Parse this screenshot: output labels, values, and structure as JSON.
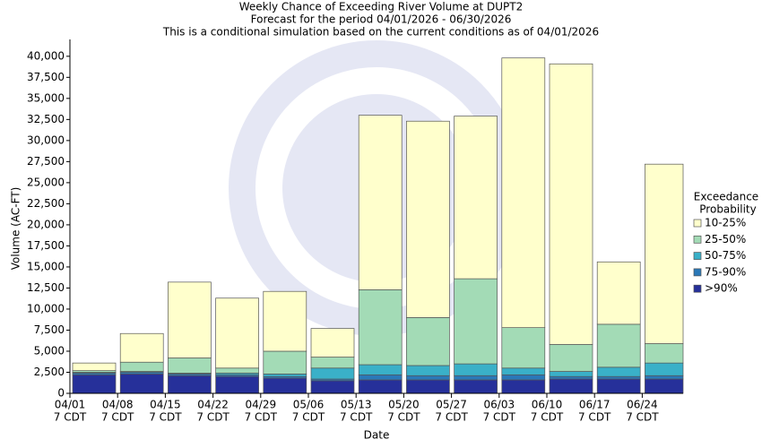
{
  "chart_data": {
    "type": "bar",
    "stacked": true,
    "title": "Weekly Chance of Exceeding River Volume at DUPT2",
    "subtitle": "Forecast for the period 04/01/2026 - 06/30/2026",
    "subtitle2": "This is a conditional simulation based on the current conditions as of 04/01/2026",
    "x_label": "Date",
    "y_label": "Volume (AC-FT)",
    "legend_title": [
      "Exceedance",
      "Probability"
    ],
    "categories": [
      [
        "04/01",
        "7 CDT"
      ],
      [
        "04/08",
        "7 CDT"
      ],
      [
        "04/15",
        "7 CDT"
      ],
      [
        "04/22",
        "7 CDT"
      ],
      [
        "04/29",
        "7 CDT"
      ],
      [
        "05/06",
        "7 CDT"
      ],
      [
        "05/13",
        "7 CDT"
      ],
      [
        "05/20",
        "7 CDT"
      ],
      [
        "05/27",
        "7 CDT"
      ],
      [
        "06/03",
        "7 CDT"
      ],
      [
        "06/10",
        "7 CDT"
      ],
      [
        "06/17",
        "7 CDT"
      ],
      [
        "06/24",
        "7 CDT"
      ]
    ],
    "series": [
      {
        "name": ">90%",
        "color": "#26309a",
        "values": [
          2200,
          2300,
          2100,
          2000,
          1800,
          1500,
          1600,
          1600,
          1600,
          1600,
          1700,
          1700,
          1700
        ]
      },
      {
        "name": "75-90%",
        "color": "#2a78b8",
        "values": [
          200,
          200,
          200,
          200,
          200,
          200,
          600,
          500,
          500,
          600,
          300,
          300,
          400
        ]
      },
      {
        "name": "50-75%",
        "color": "#3ab0c8",
        "values": [
          100,
          100,
          100,
          200,
          300,
          1300,
          1200,
          1200,
          1400,
          800,
          600,
          1100,
          1500
        ]
      },
      {
        "name": "25-50%",
        "color": "#a3dbb6",
        "values": [
          200,
          1100,
          1800,
          600,
          2700,
          1300,
          8900,
          5700,
          10100,
          4800,
          3200,
          5100,
          2300
        ]
      },
      {
        "name": "10-25%",
        "color": "#ffffcc",
        "values": [
          900,
          3400,
          9000,
          8300,
          7100,
          3400,
          20700,
          23300,
          19300,
          32000,
          33300,
          7400,
          21300
        ]
      }
    ],
    "ylim": [
      0,
      42000
    ],
    "yticks": [
      0,
      {
        "value": 2500,
        "label": "2,500"
      },
      {
        "value": 5000,
        "label": "5,000"
      },
      {
        "value": 7500,
        "label": "7,500"
      },
      {
        "value": 10000,
        "label": "10,000"
      },
      {
        "value": 12500,
        "label": "12,500"
      },
      {
        "value": 15000,
        "label": "15,000"
      },
      {
        "value": 17500,
        "label": "17,500"
      },
      {
        "value": 20000,
        "label": "20,000"
      },
      {
        "value": 22500,
        "label": "22,500"
      },
      {
        "value": 25000,
        "label": "25,000"
      },
      {
        "value": 27500,
        "label": "27,500"
      },
      {
        "value": 30000,
        "label": "30,000"
      },
      {
        "value": 32500,
        "label": "32,500"
      },
      {
        "value": 35000,
        "label": "35,000"
      },
      {
        "value": 37500,
        "label": "37,500"
      },
      {
        "value": 40000,
        "label": "40,000"
      }
    ],
    "grid": false
  }
}
